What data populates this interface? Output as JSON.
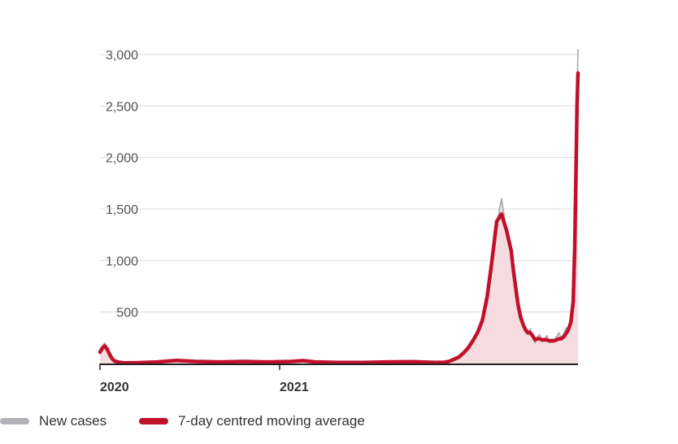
{
  "chart_data": {
    "type": "line",
    "title": "",
    "xlabel": "",
    "ylabel": "",
    "x_ticks": [
      "2020",
      "2021"
    ],
    "y_ticks": [
      "500",
      "1,000",
      "1,500",
      "2,000",
      "2,500",
      "3,000"
    ],
    "ylim": [
      0,
      3000
    ],
    "x_domain": [
      0,
      100
    ],
    "grid": true,
    "legend_position": "bottom",
    "series": [
      {
        "name": "New cases",
        "type": "area",
        "color": "#a9aab1",
        "fill": "#f6dcde",
        "x": [
          0,
          0.5,
          1,
          1.5,
          2,
          2.5,
          3,
          4,
          5,
          8,
          12,
          16,
          20,
          25,
          30,
          35,
          40,
          42.5,
          45,
          50,
          55,
          60,
          65,
          70,
          72,
          73,
          74,
          75,
          76,
          77,
          78,
          79,
          80,
          81,
          82,
          83,
          84,
          85,
          86,
          86.5,
          87,
          87.5,
          88,
          88.5,
          89,
          89.5,
          90,
          90.5,
          91,
          91.5,
          92,
          92.5,
          93,
          93.5,
          94,
          94.5,
          95,
          95.5,
          96,
          96.5,
          97,
          97.5,
          98,
          98.5,
          99,
          99.3,
          99.6,
          99.8,
          100
        ],
        "values": [
          120,
          170,
          200,
          150,
          90,
          50,
          20,
          10,
          5,
          8,
          15,
          35,
          20,
          15,
          20,
          15,
          20,
          35,
          15,
          10,
          10,
          15,
          20,
          10,
          10,
          20,
          40,
          55,
          100,
          150,
          220,
          300,
          400,
          580,
          900,
          1350,
          1600,
          1300,
          1150,
          950,
          700,
          550,
          420,
          350,
          300,
          280,
          340,
          250,
          200,
          260,
          280,
          210,
          240,
          270,
          200,
          240,
          230,
          260,
          300,
          240,
          290,
          350,
          300,
          380,
          600,
          1200,
          2000,
          2600,
          3050
        ]
      },
      {
        "name": "7-day centred moving average",
        "type": "line",
        "color": "#c0102b",
        "x": [
          0,
          0.5,
          1,
          1.5,
          2,
          2.5,
          3,
          4,
          5,
          8,
          12,
          16,
          20,
          25,
          30,
          35,
          40,
          42.5,
          45,
          50,
          55,
          60,
          65,
          70,
          72,
          73,
          74,
          75,
          76,
          77,
          78,
          79,
          80,
          81,
          82,
          83,
          84,
          85,
          86,
          86.5,
          87,
          87.5,
          88,
          88.5,
          89,
          89.5,
          90,
          90.5,
          91,
          91.5,
          92,
          92.5,
          93,
          93.5,
          94,
          94.5,
          95,
          95.5,
          96,
          96.5,
          97,
          97.5,
          98,
          98.5,
          99,
          99.3,
          99.6,
          99.8,
          100
        ],
        "values": [
          110,
          150,
          170,
          140,
          90,
          50,
          25,
          12,
          6,
          8,
          15,
          30,
          20,
          15,
          20,
          15,
          20,
          28,
          15,
          10,
          10,
          15,
          18,
          10,
          12,
          20,
          40,
          60,
          100,
          150,
          220,
          300,
          420,
          650,
          1000,
          1380,
          1450,
          1300,
          1100,
          900,
          720,
          560,
          450,
          380,
          330,
          300,
          300,
          270,
          230,
          240,
          240,
          230,
          230,
          230,
          220,
          220,
          220,
          230,
          240,
          240,
          260,
          290,
          330,
          400,
          600,
          1100,
          1900,
          2500,
          2820
        ]
      }
    ]
  }
}
